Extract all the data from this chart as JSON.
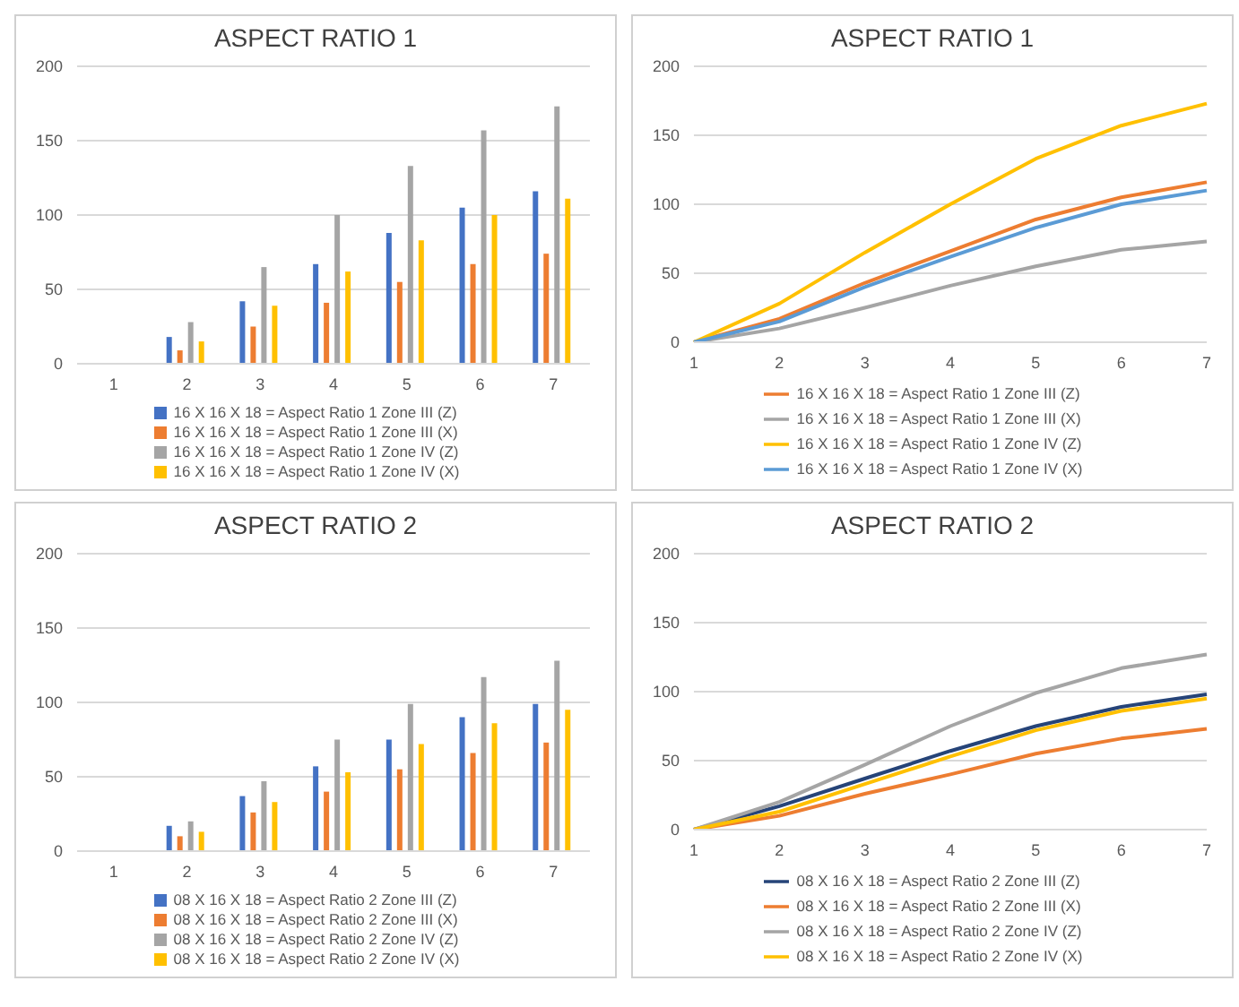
{
  "chart_data": [
    {
      "type": "bar",
      "title": "ASPECT RATIO 1",
      "categories": [
        "1",
        "2",
        "3",
        "4",
        "5",
        "6",
        "7"
      ],
      "ylim": [
        0,
        200
      ],
      "yticks": [
        0,
        50,
        100,
        150,
        200
      ],
      "grid": "y",
      "legend": "bottom",
      "series": [
        {
          "name": "16 X 16 X 18  = Aspect Ratio 1 Zone III (Z)",
          "color": "#4472c4",
          "values": [
            0,
            18,
            42,
            67,
            88,
            105,
            116
          ]
        },
        {
          "name": "16 X 16 X 18  = Aspect Ratio 1 Zone III (X)",
          "color": "#ed7d31",
          "values": [
            0,
            9,
            25,
            41,
            55,
            67,
            74
          ]
        },
        {
          "name": "16 X 16 X 18  = Aspect Ratio 1 Zone IV (Z)",
          "color": "#a5a5a5",
          "values": [
            0,
            28,
            65,
            100,
            133,
            157,
            173
          ]
        },
        {
          "name": "16 X 16 X 18  = Aspect Ratio 1 Zone IV (X)",
          "color": "#ffc000",
          "values": [
            0,
            15,
            39,
            62,
            83,
            100,
            111
          ]
        }
      ]
    },
    {
      "type": "line",
      "title": "ASPECT RATIO 1",
      "categories": [
        "1",
        "2",
        "3",
        "4",
        "5",
        "6",
        "7"
      ],
      "ylim": [
        0,
        200
      ],
      "yticks": [
        0,
        50,
        100,
        150,
        200
      ],
      "grid": "y",
      "legend": "bottom",
      "marker": "none",
      "line_style": "solid",
      "series": [
        {
          "name": "16 X 16 X 18  = Aspect Ratio 1 Zone III (Z)",
          "color": "#ed7d31",
          "values": [
            0,
            17,
            43,
            66,
            89,
            105,
            116
          ]
        },
        {
          "name": "16 X 16 X 18  = Aspect Ratio 1 Zone III (X)",
          "color": "#a5a5a5",
          "values": [
            0,
            10,
            25,
            41,
            55,
            67,
            73
          ]
        },
        {
          "name": "16 X 16 X 18  = Aspect Ratio 1 Zone IV (Z)",
          "color": "#ffc000",
          "values": [
            0,
            28,
            65,
            100,
            133,
            157,
            173
          ]
        },
        {
          "name": "16 X 16 X 18  = Aspect Ratio 1 Zone IV (X)",
          "color": "#5b9bd5",
          "values": [
            0,
            15,
            40,
            62,
            83,
            100,
            110
          ]
        }
      ]
    },
    {
      "type": "bar",
      "title": "ASPECT RATIO 2",
      "categories": [
        "1",
        "2",
        "3",
        "4",
        "5",
        "6",
        "7"
      ],
      "ylim": [
        0,
        200
      ],
      "yticks": [
        0,
        50,
        100,
        150,
        200
      ],
      "grid": "y",
      "legend": "bottom",
      "series": [
        {
          "name": "08 X 16 X 18 = Aspect Ratio 2 Zone III (Z)",
          "color": "#4472c4",
          "values": [
            0,
            17,
            37,
            57,
            75,
            90,
            99
          ]
        },
        {
          "name": "08 X 16 X 18 = Aspect Ratio 2 Zone III (X)",
          "color": "#ed7d31",
          "values": [
            0,
            10,
            26,
            40,
            55,
            66,
            73
          ]
        },
        {
          "name": "08 X 16 X 18 = Aspect Ratio 2 Zone IV (Z)",
          "color": "#a5a5a5",
          "values": [
            0,
            20,
            47,
            75,
            99,
            117,
            128
          ]
        },
        {
          "name": "08 X 16 X 18 = Aspect Ratio 2 Zone IV (X)",
          "color": "#ffc000",
          "values": [
            0,
            13,
            33,
            53,
            72,
            86,
            95
          ]
        }
      ]
    },
    {
      "type": "line",
      "title": "ASPECT RATIO 2",
      "categories": [
        "1",
        "2",
        "3",
        "4",
        "5",
        "6",
        "7"
      ],
      "ylim": [
        0,
        200
      ],
      "yticks": [
        0,
        50,
        100,
        150,
        200
      ],
      "grid": "y",
      "legend": "bottom",
      "marker": "none",
      "line_style": "solid",
      "series": [
        {
          "name": "08 X 16 X 18 = Aspect Ratio 2 Zone III (Z)",
          "color": "#264478",
          "values": [
            0,
            17,
            37,
            57,
            75,
            89,
            98
          ]
        },
        {
          "name": "08 X 16 X 18 = Aspect Ratio 2 Zone III (X)",
          "color": "#ed7d31",
          "values": [
            0,
            10,
            26,
            40,
            55,
            66,
            73
          ]
        },
        {
          "name": "08 X 16 X 18 = Aspect Ratio 2 Zone IV (Z)",
          "color": "#a5a5a5",
          "values": [
            0,
            20,
            47,
            75,
            99,
            117,
            127
          ]
        },
        {
          "name": "08 X 16 X 18 = Aspect Ratio 2 Zone IV (X)",
          "color": "#ffc000",
          "values": [
            0,
            13,
            33,
            53,
            72,
            86,
            95
          ]
        }
      ]
    }
  ]
}
